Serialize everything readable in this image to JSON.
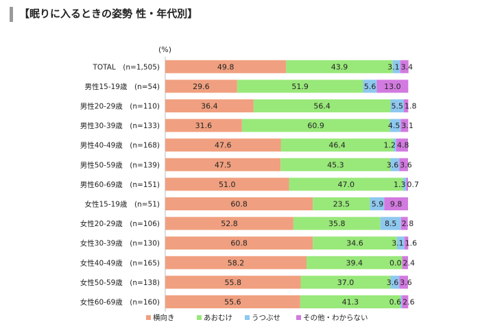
{
  "title": "【眠りに入るときの姿勢 性・年代別】",
  "colors": {
    "yoko": "#f0a080",
    "aomuke": "#99e87a",
    "utsubuse": "#8ec8ef",
    "other": "#d27ae0",
    "gridline": "#bbbbbb"
  },
  "chart_data": {
    "type": "bar",
    "orientation": "horizontal-stacked-100",
    "unit": "(%)",
    "categories": [
      "TOTAL　(n=1,505)",
      "男性15-19歳　(n=54)",
      "男性20-29歳　(n=110)",
      "男性30-39歳　(n=133)",
      "男性40-49歳　(n=168)",
      "男性50-59歳　(n=139)",
      "男性60-69歳　(n=151)",
      "女性15-19歳　(n=51)",
      "女性20-29歳　(n=106)",
      "女性30-39歳　(n=130)",
      "女性40-49歳　(n=165)",
      "女性50-59歳　(n=138)",
      "女性60-69歳　(n=160)"
    ],
    "series": [
      {
        "name": "横向き",
        "values": [
          49.8,
          29.6,
          36.4,
          31.6,
          47.6,
          47.5,
          51.0,
          60.8,
          52.8,
          60.8,
          58.2,
          55.8,
          55.6
        ]
      },
      {
        "name": "あおむけ",
        "values": [
          43.9,
          51.9,
          56.4,
          60.9,
          46.4,
          45.3,
          47.0,
          23.5,
          35.8,
          34.6,
          39.4,
          37.0,
          41.3
        ]
      },
      {
        "name": "うつぶせ",
        "values": [
          3.1,
          5.6,
          5.5,
          4.5,
          1.2,
          3.6,
          1.3,
          5.9,
          8.5,
          3.1,
          0.0,
          3.6,
          0.6
        ]
      },
      {
        "name": "その他・わからない",
        "values": [
          3.4,
          13.0,
          1.8,
          3.1,
          4.8,
          3.6,
          0.7,
          9.8,
          2.8,
          1.6,
          2.4,
          3.6,
          2.6
        ]
      }
    ],
    "labels": [
      [
        "49.8",
        "43.9",
        "3.1",
        "3.4"
      ],
      [
        "29.6",
        "51.9",
        "5.6",
        "13.0"
      ],
      [
        "36.4",
        "56.4",
        "5.5",
        "1.8"
      ],
      [
        "31.6",
        "60.9",
        "4.5",
        "3.1"
      ],
      [
        "47.6",
        "46.4",
        "1.2",
        "4.8"
      ],
      [
        "47.5",
        "45.3",
        "3.6",
        "3.6"
      ],
      [
        "51.0",
        "47.0",
        "1.3",
        "0.7"
      ],
      [
        "60.8",
        "23.5",
        "5.9",
        "9.8"
      ],
      [
        "52.8",
        "35.8",
        "8.5",
        "2.8"
      ],
      [
        "60.8",
        "34.6",
        "3.1",
        "1.6"
      ],
      [
        "58.2",
        "39.4",
        "0.0",
        "2.4"
      ],
      [
        "55.8",
        "37.0",
        "3.6",
        "3.6"
      ],
      [
        "55.6",
        "41.3",
        "0.6",
        "2.6"
      ]
    ],
    "xlim": [
      0,
      100
    ],
    "legend_position": "bottom",
    "grid": false
  }
}
